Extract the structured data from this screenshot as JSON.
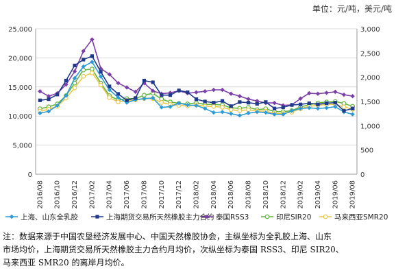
{
  "unit_label": "单位：元/吨，美元/吨",
  "note": {
    "line1": "注：数据来源于中国农垦经济发展中心、中国天然橡胶协会，主纵坐标为全乳胶上海、山东",
    "line2": "市场均价，上海期货交易所天然橡胶主力合约月均价，次纵坐标为泰国 RSS3、印尼 SIR20、",
    "line3": "马来西亚 SMR20 的离岸月均价。"
  },
  "chart_data": {
    "type": "line",
    "grid": true,
    "legend_position": "bottom",
    "x": [
      "2016/08",
      "2016/09",
      "2016/10",
      "2016/11",
      "2016/12",
      "2017/01",
      "2017/02",
      "2017/03",
      "2017/04",
      "2017/05",
      "2017/06",
      "2017/07",
      "2017/08",
      "2017/09",
      "2017/10",
      "2017/11",
      "2017/12",
      "2018/01",
      "2018/02",
      "2018/03",
      "2018/04",
      "2018/05",
      "2018/06",
      "2018/07",
      "2018/08",
      "2018/09",
      "2018/10",
      "2018/11",
      "2018/12",
      "2019/01",
      "2019/02",
      "2019/03",
      "2019/04",
      "2019/05",
      "2019/06",
      "2019/07",
      "2019/08"
    ],
    "x_tick_labels": [
      "2016/08",
      "2016/10",
      "2016/12",
      "2017/02",
      "2017/04",
      "2017/06",
      "2017/08",
      "2017/10",
      "2017/12",
      "2018/02",
      "2018/04",
      "2018/06",
      "2018/08",
      "2018/10",
      "2018/12",
      "2019/02",
      "2019/04",
      "2019/06",
      "2019/08"
    ],
    "y_left": {
      "ylim": [
        0,
        25000
      ],
      "ticks": [
        "0",
        "5,000",
        "10,000",
        "15,000",
        "20,000",
        "25,000"
      ]
    },
    "y_right": {
      "ylim": [
        0,
        3000
      ],
      "ticks": [
        "0",
        "500",
        "1,000",
        "1,500",
        "2,000",
        "2,500",
        "3,000"
      ]
    },
    "series": [
      {
        "name": "上海、山东全乳胶",
        "axis": "left",
        "color": "#2e9bd6",
        "marker": "diamond",
        "values": [
          10500,
          10800,
          11800,
          13500,
          16500,
          18500,
          19300,
          16800,
          14500,
          13200,
          12300,
          12800,
          13000,
          13100,
          11500,
          11600,
          12200,
          11900,
          11800,
          11300,
          10600,
          10700,
          10400,
          10100,
          10500,
          10700,
          10600,
          10300,
          10300,
          10900,
          11300,
          11400,
          11300,
          11400,
          11600,
          10700,
          10300
        ]
      },
      {
        "name": "上海期货交易所天然橡胶主力合约",
        "axis": "left",
        "color": "#1f3a8a",
        "marker": "square",
        "values": [
          12700,
          12900,
          13700,
          16100,
          18700,
          19700,
          20300,
          17600,
          15100,
          13800,
          12700,
          13100,
          16100,
          15800,
          13600,
          13600,
          14400,
          14100,
          12900,
          12500,
          12300,
          12600,
          11700,
          12400,
          12300,
          12100,
          12400,
          11300,
          11500,
          11900,
          12000,
          12200,
          12000,
          12200,
          12300,
          10900,
          11300
        ]
      },
      {
        "name": "泰国RSS3",
        "axis": "right",
        "color": "#7b3fa8",
        "marker": "diamond",
        "values": [
          1710,
          1610,
          1670,
          1850,
          2120,
          2540,
          2780,
          2180,
          2060,
          1880,
          1790,
          1700,
          1880,
          1720,
          1660,
          1680,
          1720,
          1670,
          1690,
          1710,
          1740,
          1740,
          1660,
          1610,
          1550,
          1510,
          1470,
          1470,
          1420,
          1430,
          1560,
          1670,
          1660,
          1680,
          1700,
          1640,
          1610
        ]
      },
      {
        "name": "印尼SIR20",
        "axis": "right",
        "color": "#63b33d",
        "marker": "circle",
        "values": [
          1350,
          1390,
          1450,
          1620,
          1880,
          2150,
          2170,
          1880,
          1620,
          1530,
          1560,
          1560,
          1630,
          1670,
          1550,
          1490,
          1460,
          1450,
          1470,
          1440,
          1440,
          1430,
          1370,
          1360,
          1380,
          1330,
          1350,
          1290,
          1290,
          1310,
          1390,
          1430,
          1470,
          1490,
          1500,
          1460,
          1400
        ]
      },
      {
        "name": "马来西亚SMR20",
        "axis": "right",
        "color": "#e8c84a",
        "marker": "circle",
        "values": [
          1300,
          1340,
          1400,
          1570,
          1780,
          2020,
          2090,
          1840,
          1580,
          1490,
          1520,
          1530,
          1560,
          1560,
          1480,
          1440,
          1420,
          1410,
          1430,
          1400,
          1400,
          1380,
          1330,
          1310,
          1330,
          1300,
          1300,
          1250,
          1250,
          1280,
          1350,
          1400,
          1420,
          1440,
          1440,
          1390,
          1340
        ]
      }
    ]
  }
}
